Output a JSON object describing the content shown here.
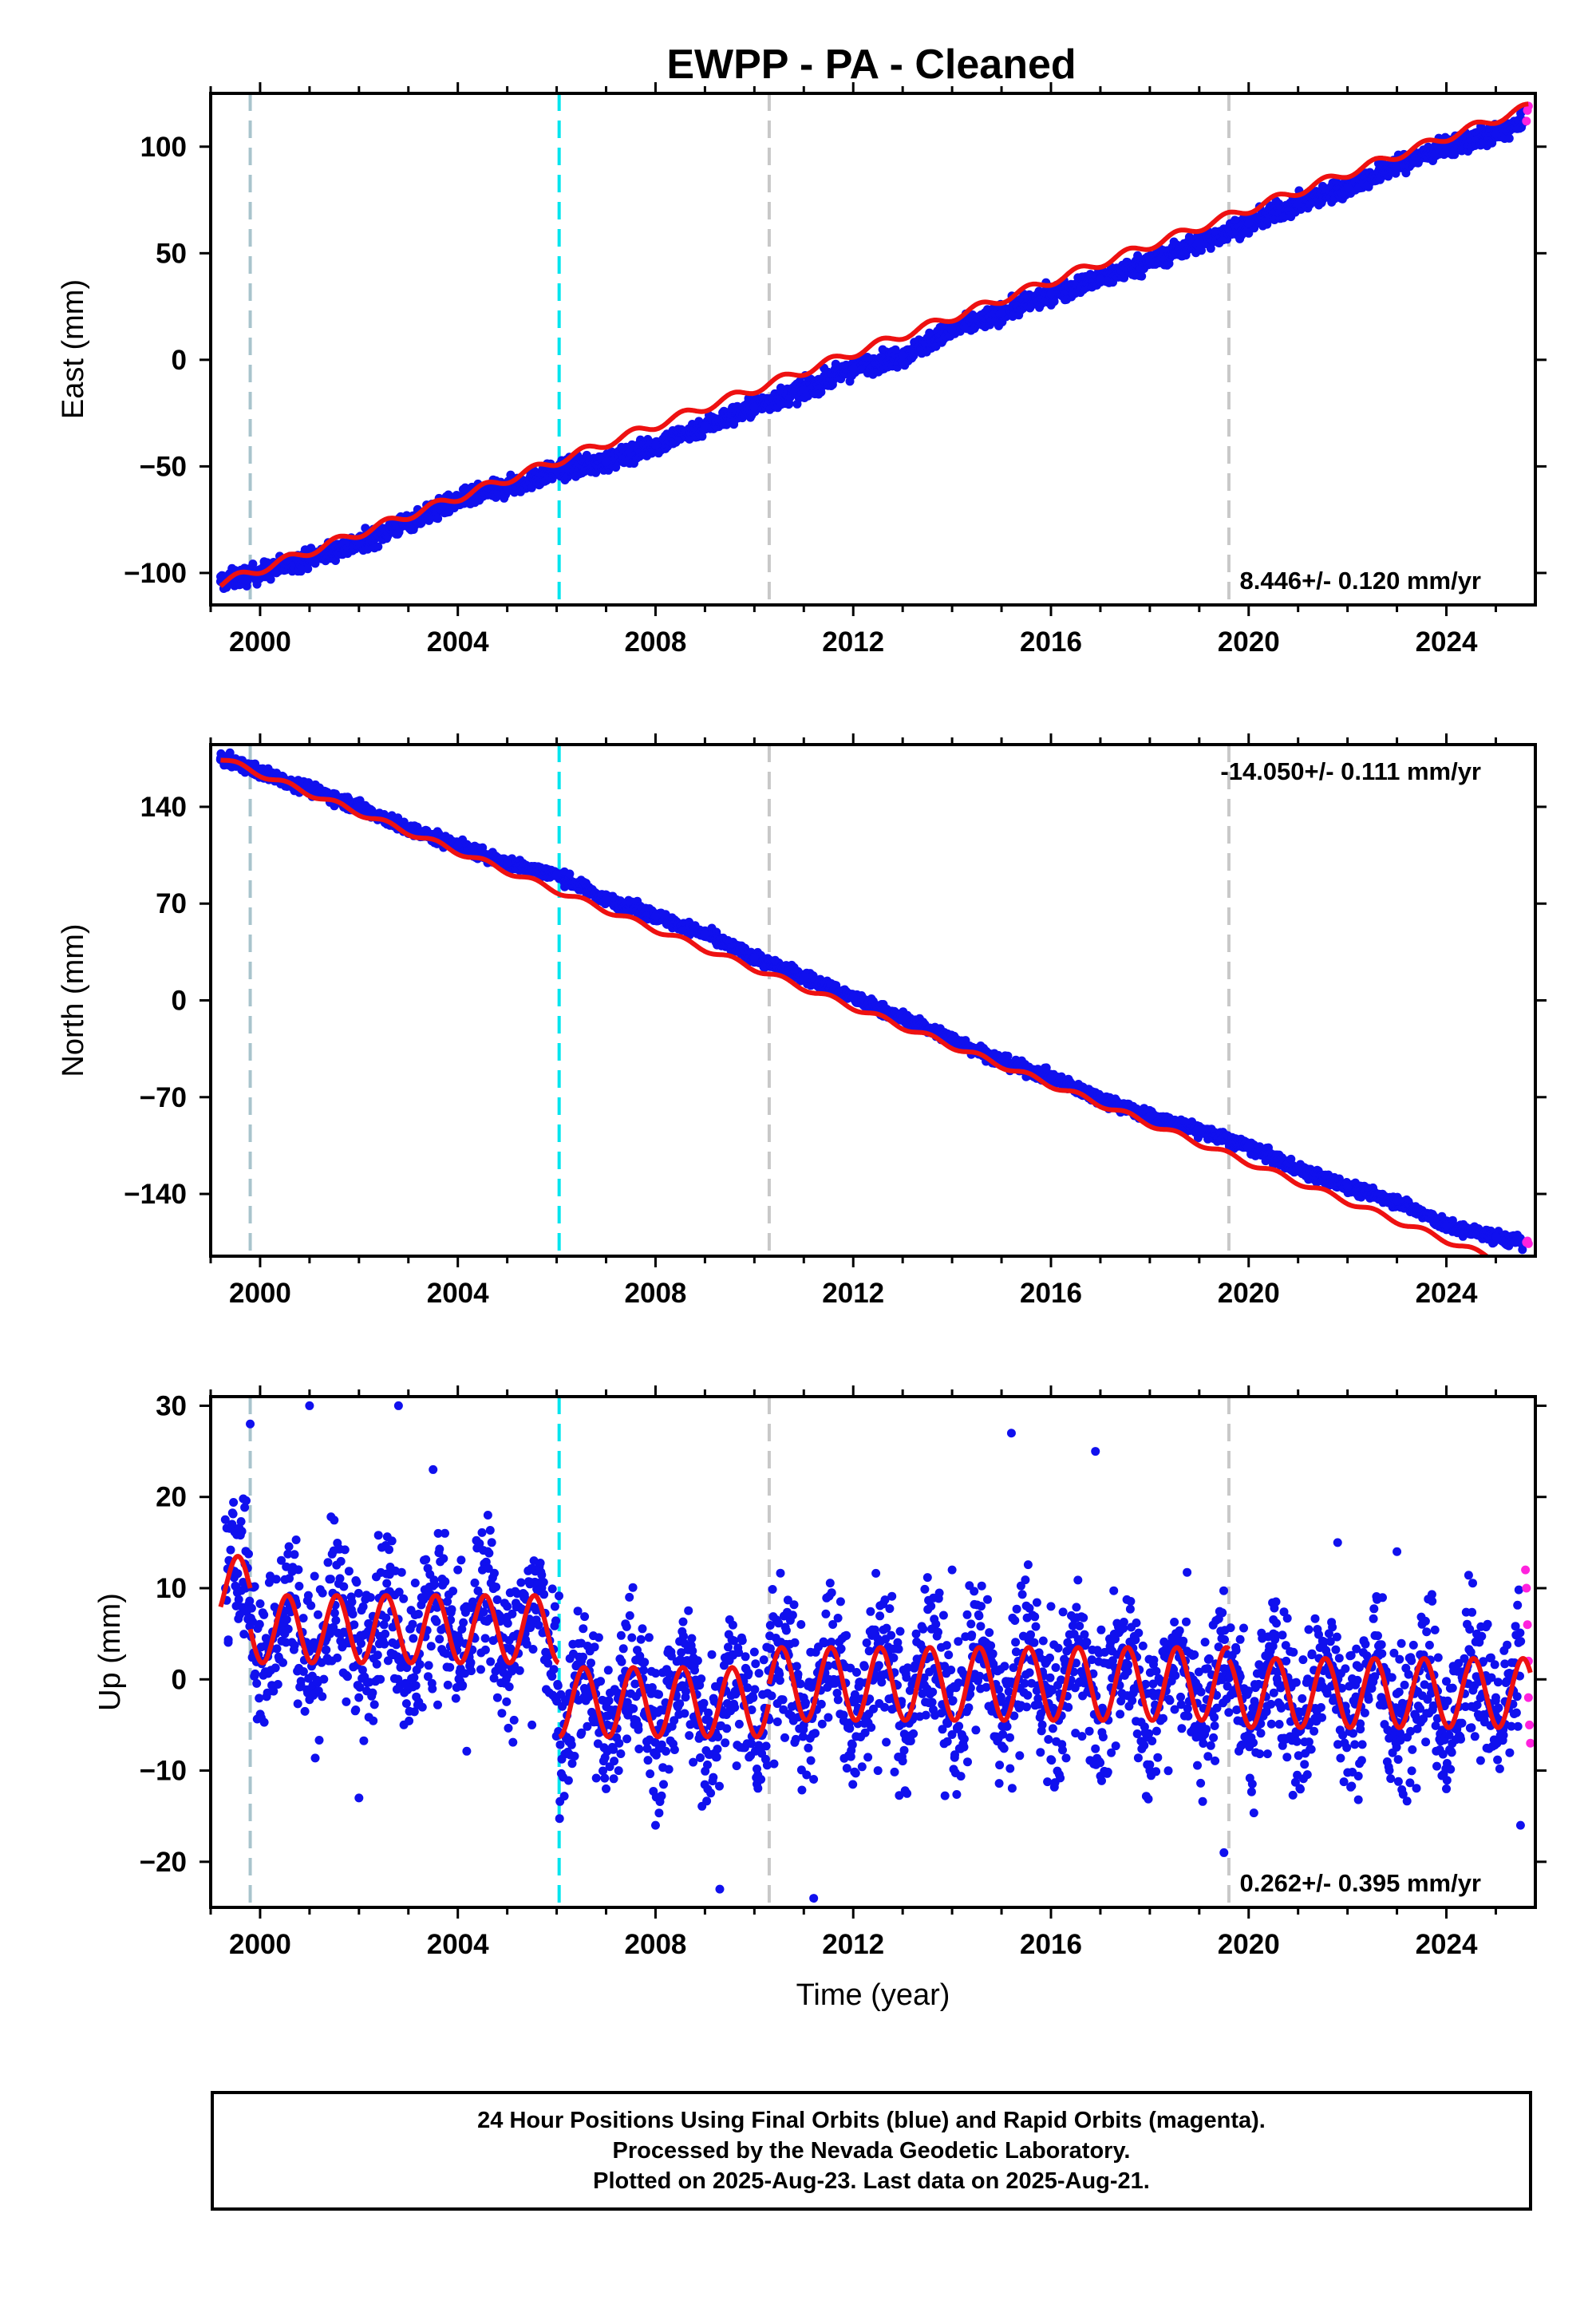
{
  "title": "EWPP  - PA - Cleaned",
  "colors": {
    "final_orbits": "#1010ee",
    "rapid_orbits": "#ff22dd",
    "model": "#ee1111",
    "antenna_change_line": "#a8c4cc",
    "equipment_change_line": "#00e5ee",
    "other_change_line": "#c8c8c8"
  },
  "chart_data": [
    {
      "type": "scatter",
      "component": "east",
      "ylabel": "East (mm)",
      "xlabel": "",
      "xlim": [
        1999.0,
        2025.8
      ],
      "ylim": [
        -115,
        125
      ],
      "yticks": [
        -100,
        -50,
        0,
        50,
        100
      ],
      "xticks": [
        2000,
        2004,
        2008,
        2012,
        2016,
        2020,
        2024
      ],
      "rate_label": "8.446+/- 0.120 mm/yr",
      "rate_position": "bottom-right",
      "series": [
        {
          "type": "scatter",
          "role": "final_orbits",
          "x": [
            1999.2,
            2000.0,
            2001.0,
            2002.0,
            2003.0,
            2004.0,
            2005.0,
            2006.0,
            2007.0,
            2008.0,
            2009.0,
            2010.0,
            2011.0,
            2012.0,
            2013.0,
            2014.0,
            2015.0,
            2016.0,
            2017.0,
            2018.0,
            2019.0,
            2020.0,
            2021.0,
            2022.0,
            2023.0,
            2024.0,
            2025.0,
            2025.55
          ],
          "y": [
            -104,
            -100,
            -93,
            -86,
            -76,
            -66,
            -60,
            -52,
            -48,
            -40,
            -31,
            -22,
            -14,
            -4,
            2,
            14,
            22,
            31,
            38,
            46,
            55,
            64,
            73,
            81,
            91,
            100,
            106,
            111
          ]
        },
        {
          "type": "scatter",
          "role": "rapid_orbits",
          "x": [
            2025.62,
            2025.64,
            2025.66
          ],
          "y": [
            112,
            117,
            119
          ]
        },
        {
          "type": "line",
          "role": "model",
          "trend_slope": 8.446,
          "trend_intercept": -105,
          "trend_epoch": 1999.2,
          "seasonal_amplitude": 2.0
        }
      ],
      "breaks": [
        {
          "x": 1999.8,
          "kind": "antenna_change_line"
        },
        {
          "x": 2006.05,
          "kind": "equipment_change_line"
        },
        {
          "x": 2010.3,
          "kind": "other_change_line"
        },
        {
          "x": 2019.6,
          "kind": "other_change_line"
        }
      ]
    },
    {
      "type": "scatter",
      "component": "north",
      "ylabel": "North (mm)",
      "xlabel": "",
      "xlim": [
        1999.0,
        2025.8
      ],
      "ylim": [
        -185,
        185
      ],
      "yticks": [
        -140,
        -70,
        0,
        70,
        140
      ],
      "xticks": [
        2000,
        2004,
        2008,
        2012,
        2016,
        2020,
        2024
      ],
      "rate_label": "-14.050+/- 0.111 mm/yr",
      "rate_position": "top-right",
      "series": [
        {
          "type": "scatter",
          "role": "final_orbits",
          "x": [
            1999.2,
            2000.0,
            2001.0,
            2002.0,
            2003.0,
            2004.0,
            2005.0,
            2006.0,
            2007.0,
            2008.0,
            2009.0,
            2010.0,
            2011.0,
            2012.0,
            2013.0,
            2014.0,
            2015.0,
            2016.0,
            2017.0,
            2018.0,
            2019.0,
            2020.0,
            2021.0,
            2022.0,
            2023.0,
            2024.0,
            2025.0,
            2025.55
          ],
          "y": [
            175,
            165,
            153,
            140,
            124,
            112,
            99,
            91,
            73,
            61,
            48,
            31,
            17,
            2,
            -13,
            -28,
            -44,
            -56,
            -71,
            -84,
            -94,
            -106,
            -122,
            -135,
            -145,
            -163,
            -171,
            -175
          ]
        },
        {
          "type": "scatter",
          "role": "rapid_orbits",
          "x": [
            2025.62,
            2025.64,
            2025.66
          ],
          "y": [
            -175,
            -174,
            -176
          ]
        },
        {
          "type": "line",
          "role": "model",
          "trend_slope": -14.05,
          "trend_intercept": 175,
          "trend_epoch": 1999.2,
          "seasonal_amplitude": 2.0
        }
      ],
      "breaks": [
        {
          "x": 1999.8,
          "kind": "antenna_change_line"
        },
        {
          "x": 2006.05,
          "kind": "equipment_change_line"
        },
        {
          "x": 2010.3,
          "kind": "other_change_line"
        },
        {
          "x": 2019.6,
          "kind": "other_change_line"
        }
      ]
    },
    {
      "type": "scatter",
      "component": "up",
      "ylabel": "Up (mm)",
      "xlabel": "Time (year)",
      "xlim": [
        1999.0,
        2025.8
      ],
      "ylim": [
        -25,
        31
      ],
      "yticks": [
        -20,
        -10,
        0,
        10,
        20,
        30
      ],
      "xticks": [
        2000,
        2004,
        2008,
        2012,
        2016,
        2020,
        2024
      ],
      "rate_label": "0.262+/- 0.395 mm/yr",
      "rate_position": "bottom-right",
      "series": [
        {
          "type": "scatter",
          "role": "final_orbits",
          "x": [
            1999.3,
            1999.8,
            2000.5,
            2001.0,
            2002.0,
            2002.8,
            2003.5,
            2004.0,
            2005.0,
            2005.5,
            2006.5,
            2007.0,
            2008.0,
            2009.3,
            2010.0,
            2011.0,
            2011.2,
            2012.5,
            2014.0,
            2015.2,
            2016.0,
            2016.9,
            2018.0,
            2019.5,
            2020.5,
            2021.8,
            2023.0,
            2024.0,
            2025.0,
            2025.5
          ],
          "y": [
            10,
            28,
            5,
            30,
            -13,
            30,
            23,
            12,
            8,
            -5,
            2,
            -12,
            -16,
            -23,
            3,
            -5,
            -24,
            -10,
            12,
            27,
            8,
            25,
            -10,
            -19,
            5,
            15,
            14,
            -12,
            -2,
            -16
          ]
        },
        {
          "type": "scatter",
          "role": "rapid_orbits",
          "x": [
            2025.6,
            2025.62,
            2025.64,
            2025.66,
            2025.66,
            2025.68,
            2025.7
          ],
          "y": [
            12,
            10,
            6,
            2,
            -2,
            -5,
            -7
          ]
        },
        {
          "type": "line",
          "role": "model",
          "segments": [
            {
              "x0": 1999.2,
              "x1": 1999.8,
              "offset": 10,
              "amplitude": 3.5
            },
            {
              "x0": 1999.8,
              "x1": 2006.05,
              "offset": 5.5,
              "amplitude": 3.7
            },
            {
              "x0": 2006.05,
              "x1": 2010.3,
              "offset": -2.5,
              "amplitude": 3.8
            },
            {
              "x0": 2010.3,
              "x1": 2019.6,
              "offset": -0.5,
              "amplitude": 4.0
            },
            {
              "x0": 2019.6,
              "x1": 2025.7,
              "offset": -1.5,
              "amplitude": 3.8
            }
          ]
        }
      ],
      "breaks": [
        {
          "x": 1999.8,
          "kind": "antenna_change_line"
        },
        {
          "x": 2006.05,
          "kind": "equipment_change_line"
        },
        {
          "x": 2010.3,
          "kind": "other_change_line"
        },
        {
          "x": 2019.6,
          "kind": "other_change_line"
        }
      ]
    }
  ],
  "footer": {
    "line1": "24 Hour Positions Using Final Orbits (blue) and Rapid Orbits (magenta).",
    "line2": "Processed by the Nevada Geodetic Laboratory.",
    "line3": "Plotted on 2025-Aug-23. Last data on 2025-Aug-21."
  }
}
